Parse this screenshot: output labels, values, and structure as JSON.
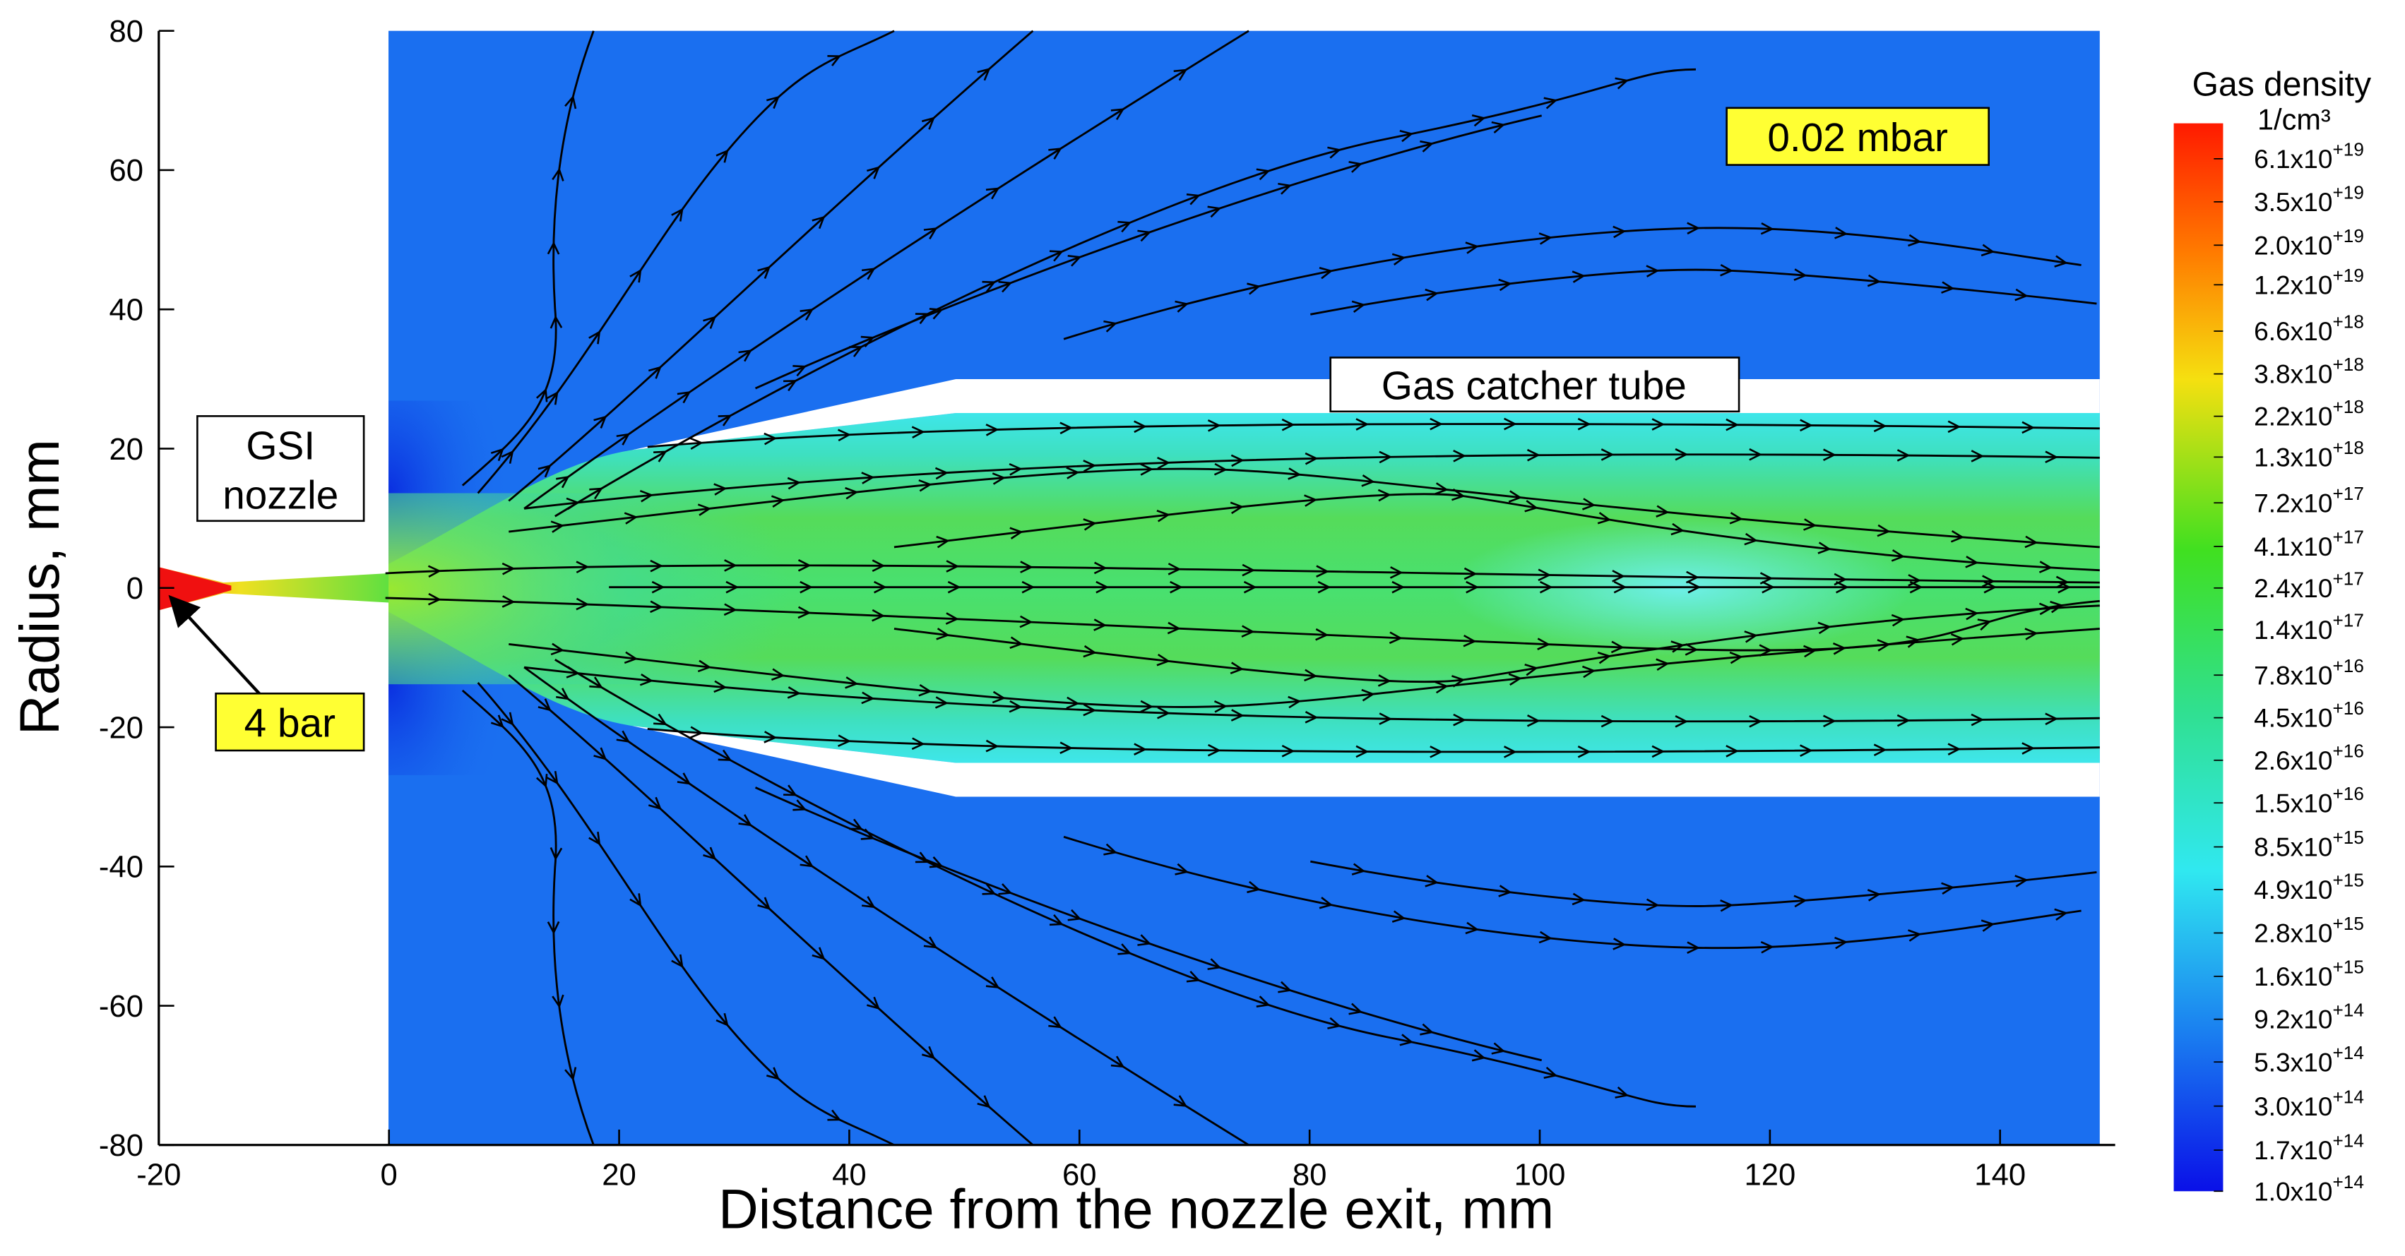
{
  "chart_data": {
    "type": "contour",
    "xlabel": "Distance from the nozzle exit,  mm",
    "ylabel": "Radius,  mm",
    "xlim": [
      -20,
      150
    ],
    "ylim": [
      -80,
      80
    ],
    "xticks": [
      -20,
      0,
      20,
      40,
      60,
      80,
      100,
      120,
      140
    ],
    "yticks": [
      -80,
      -60,
      -40,
      -20,
      0,
      20,
      40,
      60,
      80
    ],
    "annotations": {
      "nozzle": [
        "GSI",
        "nozzle"
      ],
      "pressure_in": "4 bar",
      "pressure_out": "0.02 mbar",
      "tube": "Gas catcher tube"
    },
    "colorbar": {
      "title": "Gas density",
      "unit": "1/cm³",
      "scale": "log",
      "ticks": [
        {
          "value": 6.1e+19,
          "label": "6.1x10+19"
        },
        {
          "value": 3.5e+19,
          "label": "3.5x10+19"
        },
        {
          "value": 2e+19,
          "label": "2.0x10+19"
        },
        {
          "value": 1.2e+19,
          "label": "1.2x10+19"
        },
        {
          "value": 6.6e+18,
          "label": "6.6x10+18"
        },
        {
          "value": 3.8e+18,
          "label": "3.8x10+18"
        },
        {
          "value": 2.2e+18,
          "label": "2.2x10+18"
        },
        {
          "value": 1.3e+18,
          "label": "1.3x10+18"
        },
        {
          "value": 7.2e+17,
          "label": "7.2x10+17"
        },
        {
          "value": 4.1e+17,
          "label": "4.1x10+17"
        },
        {
          "value": 2.4e+17,
          "label": "2.4x10+17"
        },
        {
          "value": 1.4e+17,
          "label": "1.4x10+17"
        },
        {
          "value": 7.8e+16,
          "label": "7.8x10+16"
        },
        {
          "value": 4.5e+16,
          "label": "4.5x10+16"
        },
        {
          "value": 2.6e+16,
          "label": "2.6x10+16"
        },
        {
          "value": 1.5e+16,
          "label": "1.5x10+16"
        },
        {
          "value": 8500000000000000.0,
          "label": "8.5x10+15"
        },
        {
          "value": 4900000000000000.0,
          "label": "4.9x10+15"
        },
        {
          "value": 2800000000000000.0,
          "label": "2.8x10+15"
        },
        {
          "value": 1600000000000000.0,
          "label": "1.6x10+15"
        },
        {
          "value": 920000000000000.0,
          "label": "9.2x10+14"
        },
        {
          "value": 530000000000000.0,
          "label": "5.3x10+14"
        },
        {
          "value": 300000000000000.0,
          "label": "3.0x10+14"
        },
        {
          "value": 170000000000000.0,
          "label": "1.7x10+14"
        },
        {
          "value": 100000000000000.0,
          "label": "1.0x10+14"
        }
      ]
    }
  }
}
